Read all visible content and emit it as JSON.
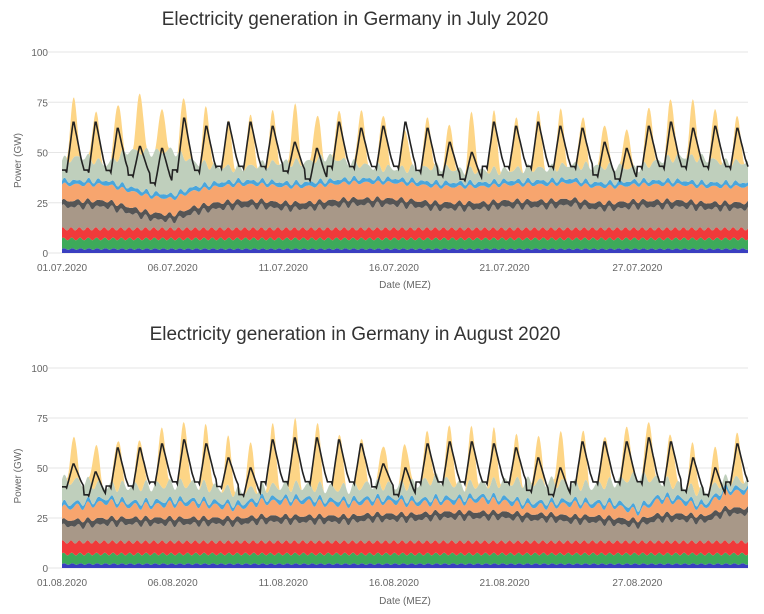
{
  "chart_data": [
    {
      "type": "area",
      "stacked": true,
      "title": "Electricity generation in Germany in July 2020",
      "xlabel": "Date (MEZ)",
      "ylabel": "Power (GW)",
      "ylim": [
        0,
        100
      ],
      "yticks": [
        "0",
        "25",
        "50",
        "75",
        "100"
      ],
      "xticks": [
        {
          "day": 1,
          "label": "01.07.2020"
        },
        {
          "day": 6,
          "label": "06.07.2020"
        },
        {
          "day": 11,
          "label": "11.07.2020"
        },
        {
          "day": 16,
          "label": "16.07.2020"
        },
        {
          "day": 21,
          "label": "21.07.2020"
        },
        {
          "day": 27,
          "label": "27.07.2020"
        }
      ],
      "days": 31,
      "grid": true,
      "layers": [
        {
          "color": "#3a3fc0",
          "value": 2
        },
        {
          "color": "#3daa5a",
          "value": 5
        },
        {
          "color": "#f03a3a",
          "value": 5
        },
        {
          "color": "#a89888",
          "daily": [
            11,
            11,
            11,
            8,
            5,
            4,
            8,
            10,
            11,
            11,
            10,
            10,
            11,
            12,
            12,
            12,
            11,
            10,
            10,
            10,
            11,
            11,
            11,
            12,
            10,
            10,
            11,
            11,
            11,
            10,
            10
          ]
        },
        {
          "color": "#555555",
          "value": 3
        },
        {
          "color": "#f7a56e",
          "value": 8
        },
        {
          "color": "#4aa6dc",
          "value": 2
        },
        {
          "color": "#bfcfbc",
          "daily": [
            10,
            12,
            8,
            18,
            20,
            22,
            12,
            8,
            6,
            8,
            10,
            10,
            12,
            8,
            6,
            5,
            6,
            8,
            6,
            6,
            5,
            6,
            6,
            7,
            8,
            8,
            6,
            10,
            12,
            12,
            10
          ]
        },
        {
          "color": "#fdd586",
          "daily_peak": [
            30,
            25,
            28,
            30,
            22,
            30,
            28,
            22,
            25,
            25,
            28,
            22,
            25,
            28,
            28,
            20,
            25,
            22,
            28,
            28,
            25,
            28,
            28,
            25,
            22,
            20,
            30,
            30,
            28,
            25,
            22
          ]
        }
      ],
      "load": {
        "color": "#222222",
        "daily_peak": [
          65,
          65,
          62,
          53,
          52,
          67,
          63,
          65,
          65,
          63,
          55,
          52,
          65,
          62,
          63,
          65,
          62,
          55,
          50,
          65,
          63,
          65,
          63,
          62,
          55,
          52,
          63,
          65,
          62,
          63,
          62
        ],
        "daily_min": [
          40,
          40,
          40,
          38,
          34,
          40,
          40,
          42,
          42,
          42,
          40,
          36,
          42,
          42,
          42,
          42,
          40,
          38,
          36,
          42,
          42,
          42,
          42,
          42,
          38,
          36,
          42,
          42,
          42,
          42,
          42
        ]
      }
    },
    {
      "type": "area",
      "stacked": true,
      "title": "Electricity generation in Germany in August 2020",
      "xlabel": "Date (MEZ)",
      "ylabel": "Power (GW)",
      "ylim": [
        0,
        100
      ],
      "yticks": [
        "0",
        "25",
        "50",
        "75",
        "100"
      ],
      "xticks": [
        {
          "day": 1,
          "label": "01.08.2020"
        },
        {
          "day": 6,
          "label": "06.08.2020"
        },
        {
          "day": 11,
          "label": "11.08.2020"
        },
        {
          "day": 16,
          "label": "16.08.2020"
        },
        {
          "day": 21,
          "label": "21.08.2020"
        },
        {
          "day": 27,
          "label": "27.08.2020"
        }
      ],
      "days": 31,
      "grid": true,
      "layers": [
        {
          "color": "#3a3fc0",
          "value": 2
        },
        {
          "color": "#3daa5a",
          "value": 5
        },
        {
          "color": "#f03a3a",
          "value": 6
        },
        {
          "color": "#a89888",
          "daily": [
            8,
            8,
            9,
            9,
            9,
            9,
            9,
            9,
            9,
            10,
            10,
            10,
            10,
            10,
            11,
            11,
            11,
            12,
            12,
            12,
            12,
            11,
            11,
            10,
            10,
            9,
            8,
            11,
            11,
            10,
            14
          ]
        },
        {
          "color": "#555555",
          "value": 3
        },
        {
          "color": "#f7a56e",
          "daily": [
            6,
            7,
            8,
            6,
            6,
            7,
            7,
            6,
            5,
            7,
            7,
            7,
            6,
            6,
            6,
            6,
            5,
            5,
            5,
            6,
            5,
            4,
            4,
            6,
            5,
            6,
            4,
            7,
            6,
            4,
            8
          ]
        },
        {
          "color": "#4aa6dc",
          "value": 2
        },
        {
          "color": "#bfcfbc",
          "daily": [
            12,
            10,
            6,
            8,
            8,
            8,
            8,
            7,
            6,
            5,
            6,
            6,
            6,
            6,
            7,
            6,
            8,
            10,
            6,
            6,
            8,
            10,
            10,
            8,
            8,
            10,
            16,
            8,
            6,
            6,
            4
          ]
        },
        {
          "color": "#fdd586",
          "daily_peak": [
            22,
            20,
            25,
            25,
            30,
            32,
            30,
            25,
            22,
            30,
            32,
            32,
            28,
            25,
            22,
            22,
            25,
            28,
            28,
            25,
            22,
            22,
            25,
            28,
            26,
            28,
            30,
            25,
            22,
            18,
            22
          ]
        }
      ],
      "load": {
        "color": "#222222",
        "daily_peak": [
          52,
          48,
          60,
          60,
          62,
          64,
          62,
          55,
          50,
          64,
          65,
          65,
          64,
          62,
          52,
          50,
          62,
          63,
          63,
          62,
          60,
          55,
          50,
          63,
          63,
          63,
          65,
          63,
          55,
          50,
          62
        ],
        "daily_min": [
          40,
          36,
          40,
          40,
          42,
          42,
          42,
          40,
          36,
          42,
          42,
          42,
          42,
          42,
          40,
          36,
          42,
          42,
          42,
          42,
          42,
          38,
          36,
          42,
          42,
          42,
          42,
          42,
          38,
          36,
          42
        ]
      }
    }
  ]
}
